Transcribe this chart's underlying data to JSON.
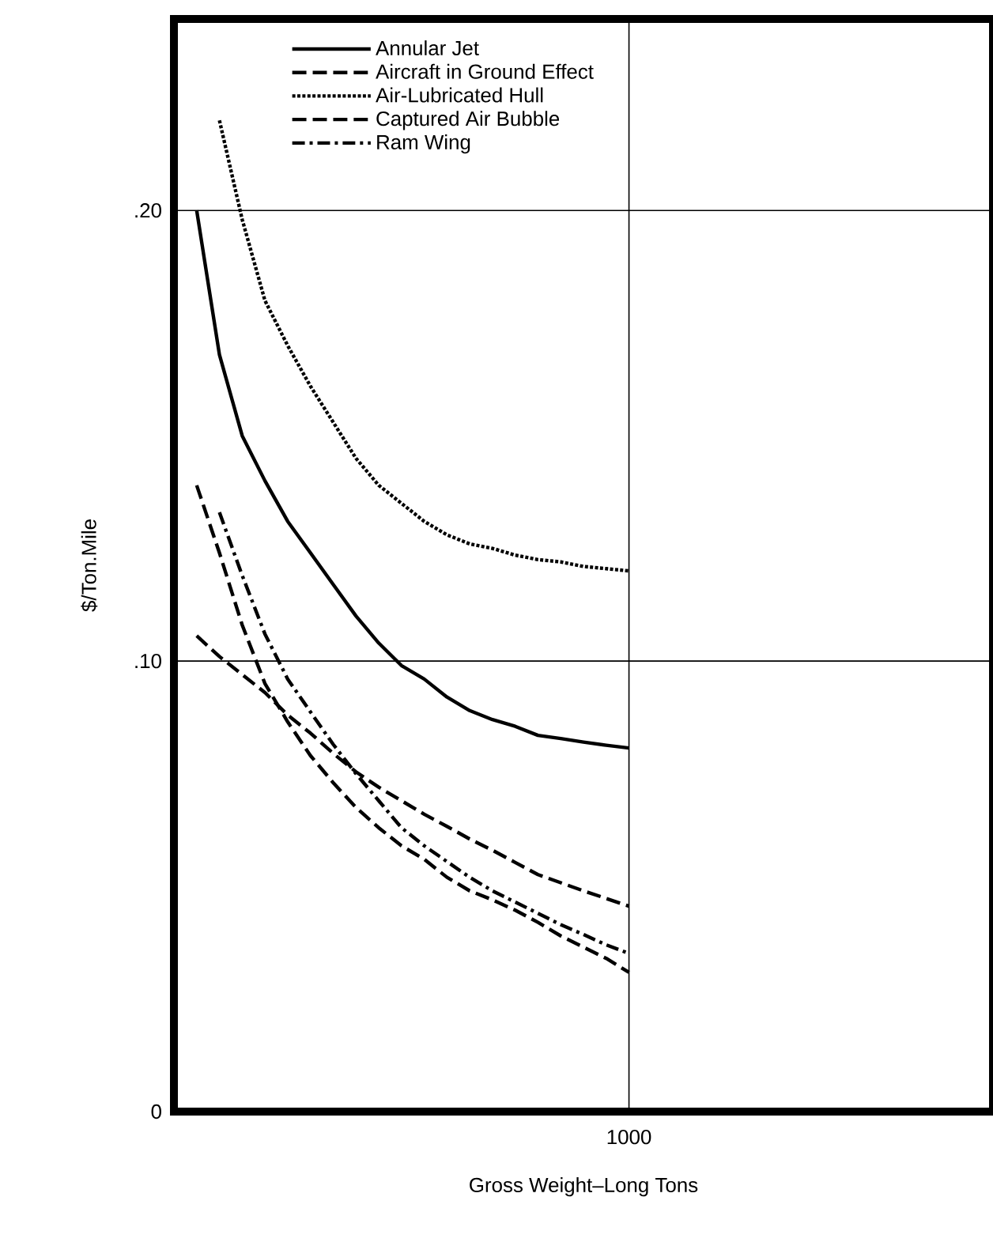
{
  "chart_data": {
    "type": "line",
    "xlabel": "Gross Weight–Long Tons",
    "ylabel": "$/Ton.Mile",
    "categories": [
      null,
      null,
      null,
      null,
      null,
      null,
      null,
      null,
      null,
      null,
      null,
      null,
      null,
      null,
      null,
      null,
      null,
      null,
      null,
      null,
      "1000",
      null,
      null,
      null,
      null,
      null,
      null,
      null,
      null,
      null,
      null,
      null,
      null,
      null,
      null,
      null,
      null
    ],
    "ylim": [
      0,
      0.2425
    ],
    "yticks": [
      {
        "value": 0,
        "label": "0"
      },
      {
        "value": 0.1,
        "label": ".10"
      },
      {
        "value": 0.2,
        "label": ".20"
      }
    ],
    "grid": true,
    "legend": "top",
    "series": [
      {
        "name": "Annular Jet",
        "color": "#000000",
        "line_style": "solid",
        "values": [
          null,
          0.2,
          0.168,
          0.15,
          0.14,
          0.131,
          0.124,
          0.117,
          0.11,
          0.104,
          0.099,
          0.096,
          0.092,
          0.089,
          0.087,
          0.0855,
          0.0835,
          0.0828,
          0.082,
          0.0813,
          0.0807,
          null,
          null,
          null,
          null,
          null,
          null,
          null,
          null,
          null,
          null,
          null,
          null,
          null,
          null,
          null,
          null
        ]
      },
      {
        "name": "Aircraft in Ground Effect",
        "color": "#000000",
        "line_style": "dashed",
        "values": [
          null,
          0.139,
          0.124,
          0.108,
          0.095,
          0.0865,
          0.079,
          0.073,
          0.0675,
          0.063,
          0.059,
          0.056,
          0.052,
          0.049,
          0.047,
          0.0447,
          0.042,
          0.039,
          0.0365,
          0.034,
          0.0309,
          null,
          null,
          null,
          null,
          null,
          null,
          null,
          null,
          null,
          null,
          null,
          null,
          null,
          null,
          null,
          null
        ]
      },
      {
        "name": "Air-Lubricated Hull",
        "color": "#000000",
        "line_style": "dotted",
        "values": [
          null,
          null,
          0.22,
          0.198,
          0.18,
          0.17,
          0.161,
          0.153,
          0.145,
          0.139,
          0.135,
          0.131,
          0.128,
          0.126,
          0.125,
          0.1235,
          0.1225,
          0.122,
          0.121,
          0.1205,
          0.12,
          null,
          null,
          null,
          null,
          null,
          null,
          null,
          null,
          null,
          null,
          null,
          null,
          null,
          null,
          null,
          null
        ]
      },
      {
        "name": "Captured Air Bubble",
        "color": "#000000",
        "line_style": "dashed",
        "values": [
          null,
          0.1056,
          0.101,
          0.097,
          0.093,
          0.088,
          0.084,
          0.0795,
          0.0754,
          0.072,
          0.069,
          0.066,
          0.0633,
          0.0605,
          0.058,
          0.0553,
          0.0526,
          0.0508,
          0.049,
          0.0473,
          0.0456,
          null,
          null,
          null,
          null,
          null,
          null,
          null,
          null,
          null,
          null,
          null,
          null,
          null,
          null,
          null,
          null
        ]
      },
      {
        "name": "Ram Wing",
        "color": "#000000",
        "line_style": "dashdot",
        "values": [
          null,
          null,
          0.133,
          0.119,
          0.106,
          0.096,
          0.0887,
          0.0815,
          0.075,
          0.069,
          0.063,
          0.059,
          0.0555,
          0.052,
          0.049,
          0.0465,
          0.044,
          0.0415,
          0.0393,
          0.037,
          0.0351,
          null,
          null,
          null,
          null,
          null,
          null,
          null,
          null,
          null,
          null,
          null,
          null,
          null,
          null,
          null,
          null
        ]
      }
    ]
  }
}
